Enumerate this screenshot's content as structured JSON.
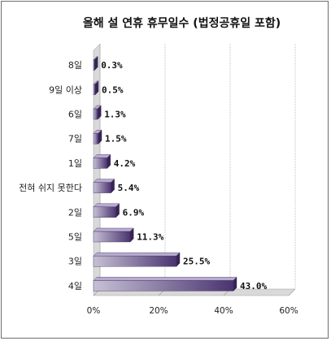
{
  "chart_data": {
    "type": "bar",
    "orientation": "horizontal",
    "title": "올해 설 연휴 휴무일수 (법정공휴일 포함)",
    "categories": [
      "8일",
      "9일 이상",
      "6일",
      "7일",
      "1일",
      "전혀 쉬지 못한다",
      "2일",
      "5일",
      "3일",
      "4일"
    ],
    "values": [
      0.3,
      0.5,
      1.3,
      1.5,
      4.2,
      5.4,
      6.9,
      11.3,
      25.5,
      43.0
    ],
    "value_labels": [
      "0.3%",
      "0.5%",
      "1.3%",
      "1.5%",
      "4.2%",
      "5.4%",
      "6.9%",
      "11.3%",
      "25.5%",
      "43.0%"
    ],
    "xlim": [
      0,
      60
    ],
    "xticks": [
      "0%",
      "20%",
      "40%",
      "60%"
    ],
    "xlabel": "",
    "ylabel": "",
    "grid": true,
    "colors": {
      "gradient_from": "#c6c0d4",
      "gradient_to": "#4a3470",
      "grid": "#9a9a9a",
      "floor": "#d9d9d9"
    }
  }
}
